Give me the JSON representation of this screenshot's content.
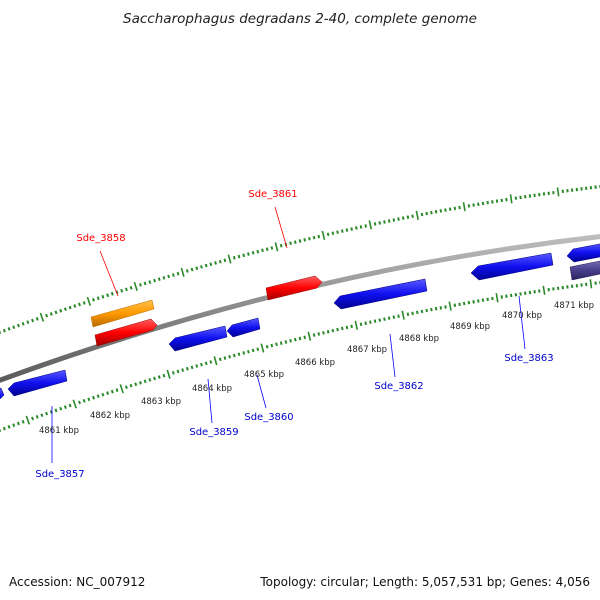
{
  "title": "Saccharophagus degradans 2-40, complete genome",
  "footer": {
    "accession": "Accession: NC_007912",
    "summary": "Topology: circular; Length: 5,057,531 bp; Genes: 4,056"
  },
  "colors": {
    "forward_gene": "#ff0000",
    "reverse_gene": "#0000ff",
    "highlight_gene": "#ff9900",
    "other_gene": "#4a3f8c",
    "ticks": "#2a8a2a",
    "backbone": "#888888"
  },
  "scale_labels": [
    "4861 kbp",
    "4862 kbp",
    "4863 kbp",
    "4864 kbp",
    "4865 kbp",
    "4866 kbp",
    "4867 kbp",
    "4868 kbp",
    "4869 kbp",
    "4870 kbp",
    "4871 kbp"
  ],
  "gene_labels": {
    "top": [
      "Sde_3858",
      "Sde_3861"
    ],
    "bottom": [
      "Sde_3857",
      "Sde_3859",
      "Sde_3860",
      "Sde_3862",
      "Sde_3863"
    ]
  }
}
